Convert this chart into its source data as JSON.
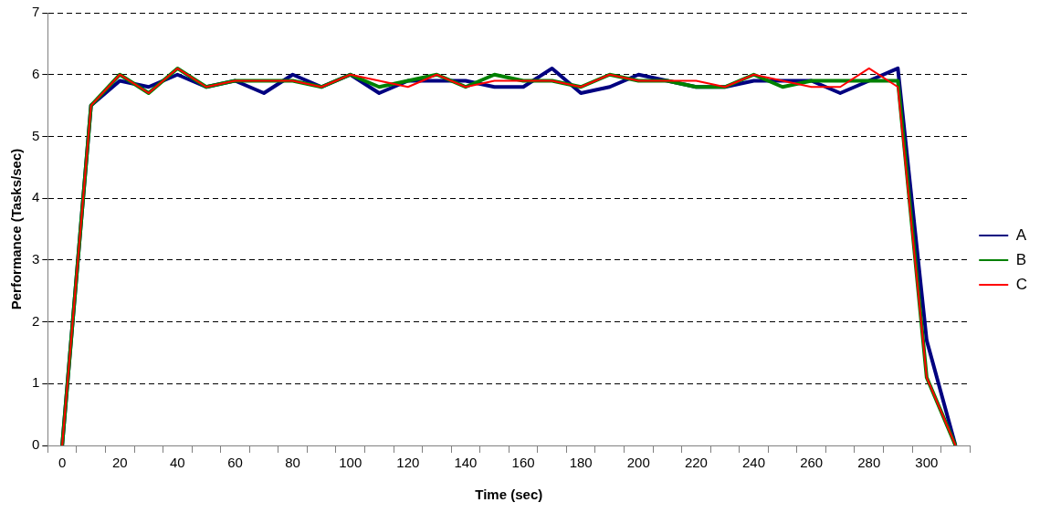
{
  "chart_data": {
    "type": "line",
    "xlabel": "Time (sec)",
    "ylabel": "Performance (Tasks/sec)",
    "categories": [
      "0",
      null,
      "20",
      null,
      "40",
      null,
      "60",
      null,
      "80",
      null,
      "100",
      null,
      "120",
      null,
      "140",
      null,
      "160",
      null,
      "180",
      null,
      "200",
      null,
      "220",
      null,
      "240",
      null,
      "260",
      null,
      "280",
      null,
      "300",
      null
    ],
    "series": [
      {
        "name": "A",
        "color": "#000080",
        "values": [
          0,
          5.5,
          5.9,
          5.8,
          6.0,
          5.8,
          5.9,
          5.7,
          6.0,
          5.8,
          6.0,
          5.7,
          5.9,
          5.9,
          5.9,
          5.8,
          5.8,
          6.1,
          5.7,
          5.8,
          6.0,
          5.9,
          5.8,
          5.8,
          5.9,
          5.9,
          5.9,
          5.7,
          5.9,
          6.1,
          1.7,
          0
        ]
      },
      {
        "name": "B",
        "color": "#008000",
        "values": [
          0,
          5.5,
          6.0,
          5.7,
          6.1,
          5.8,
          5.9,
          5.9,
          5.9,
          5.8,
          6.0,
          5.8,
          5.9,
          6.0,
          5.8,
          6.0,
          5.9,
          5.9,
          5.8,
          6.0,
          5.9,
          5.9,
          5.8,
          5.8,
          6.0,
          5.8,
          5.9,
          5.9,
          5.9,
          5.9,
          1.1,
          0
        ]
      },
      {
        "name": "C",
        "color": "#ff0000",
        "values": [
          0,
          5.5,
          6.0,
          5.7,
          6.1,
          5.8,
          5.9,
          5.9,
          5.9,
          5.8,
          6.0,
          5.9,
          5.8,
          6.0,
          5.8,
          5.9,
          5.9,
          5.9,
          5.8,
          6.0,
          5.9,
          5.9,
          5.9,
          5.8,
          6.0,
          5.9,
          5.8,
          5.8,
          6.1,
          5.8,
          1.1,
          0
        ]
      }
    ],
    "ylim": [
      0,
      7
    ],
    "yticks": [
      0,
      1,
      2,
      3,
      4,
      5,
      6,
      7
    ],
    "grid": "y",
    "legend": "right",
    "marker": "none",
    "line_style": "solid"
  }
}
